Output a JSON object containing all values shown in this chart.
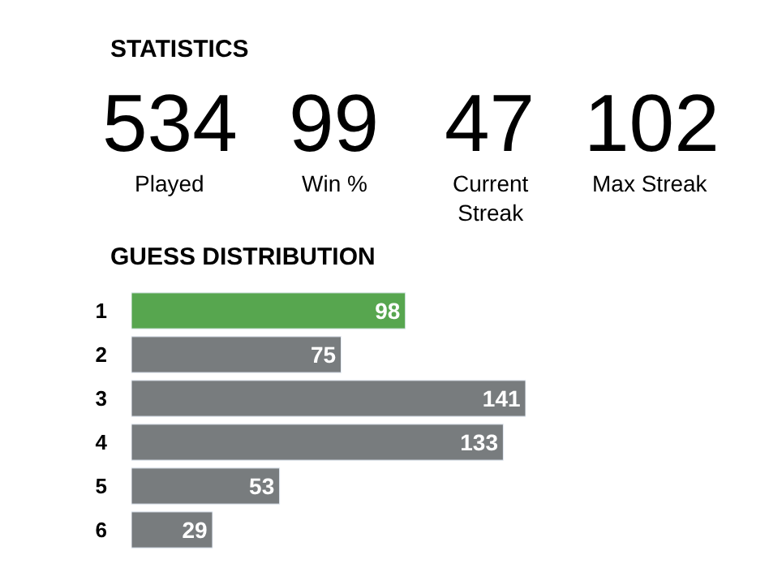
{
  "chart_data": [
    {
      "type": "other",
      "title": "STATISTICS",
      "categories": [
        "Played",
        "Win %",
        "Current Streak",
        "Max Streak"
      ],
      "values": [
        534,
        99,
        47,
        102
      ],
      "data_labels": true
    },
    {
      "type": "bar",
      "orientation": "horizontal",
      "title": "GUESS DISTRIBUTION",
      "categories": [
        "1",
        "2",
        "3",
        "4",
        "5",
        "6"
      ],
      "values": [
        98,
        75,
        141,
        133,
        53,
        29
      ],
      "colors": [
        "#57a64f",
        "#787c7e",
        "#787c7e",
        "#787c7e",
        "#787c7e",
        "#787c7e"
      ],
      "data_labels": true
    }
  ]
}
